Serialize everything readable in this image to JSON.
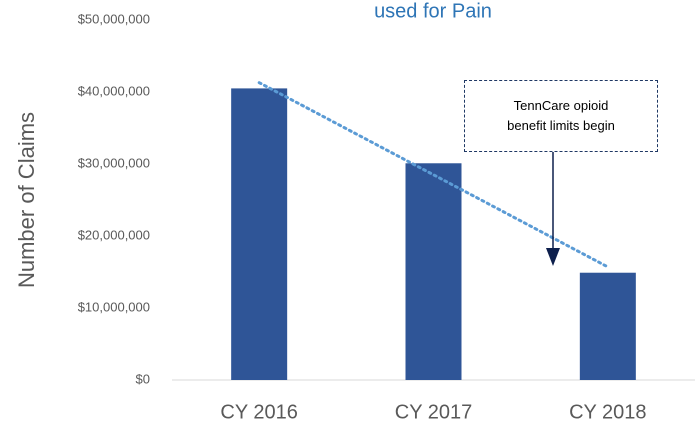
{
  "chart_data": {
    "type": "bar",
    "title": "used for Pain",
    "y_label": "Number of Claims",
    "categories": [
      "CY 2016",
      "CY 2017",
      "CY 2018"
    ],
    "values": [
      40500000,
      30100000,
      14900000
    ],
    "color": "#2f5597",
    "trendline": true,
    "trendline_color": "#5b9bd5",
    "ylim": [
      0,
      50000000
    ],
    "yticks": [
      {
        "value": 0,
        "label": "$0"
      },
      {
        "value": 10000000,
        "label": "$10,000,000"
      },
      {
        "value": 20000000,
        "label": "$20,000,000"
      },
      {
        "value": 30000000,
        "label": "$30,000,000"
      },
      {
        "value": 40000000,
        "label": "$40,000,000"
      },
      {
        "value": 50000000,
        "label": "$50,000,000"
      }
    ],
    "grid": false,
    "annotation": "TennCare opioid benefit limits begin"
  }
}
